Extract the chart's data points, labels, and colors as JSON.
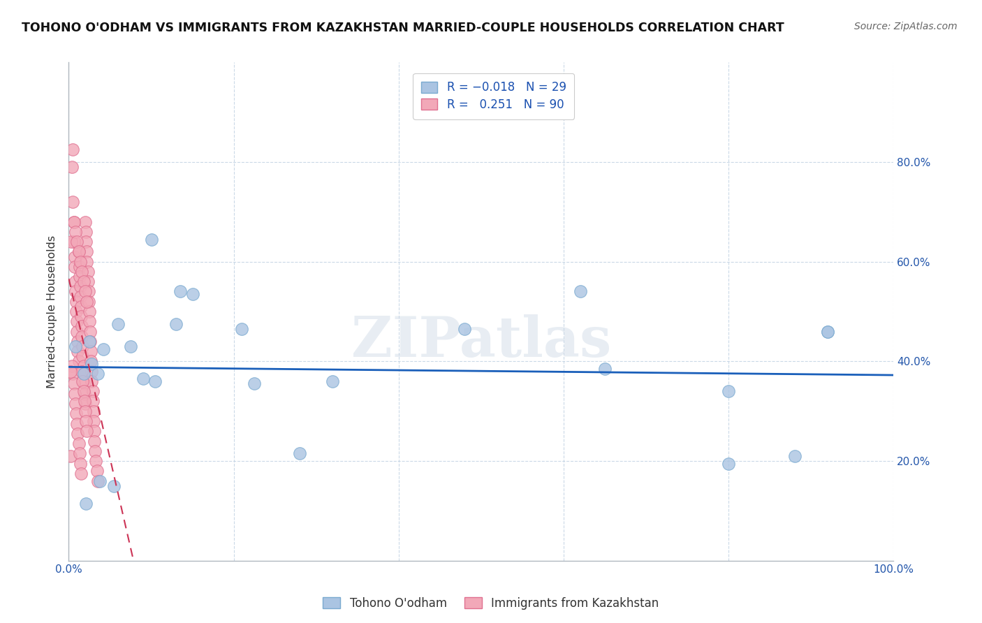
{
  "title": "TOHONO O'ODHAM VS IMMIGRANTS FROM KAZAKHSTAN MARRIED-COUPLE HOUSEHOLDS CORRELATION CHART",
  "source": "Source: ZipAtlas.com",
  "ylabel": "Married-couple Households",
  "xlim": [
    0,
    1.0
  ],
  "ylim": [
    0,
    1.0
  ],
  "ytick_vals": [
    0.2,
    0.4,
    0.6,
    0.8
  ],
  "ytick_labels": [
    "20.0%",
    "40.0%",
    "60.0%",
    "80.0%"
  ],
  "xtick_vals": [
    0.0,
    0.2,
    0.4,
    0.6,
    0.8,
    1.0
  ],
  "xtick_labels": [
    "0.0%",
    "",
    "",
    "",
    "",
    "100.0%"
  ],
  "legend_labels": [
    "Tohono O'odham",
    "Immigrants from Kazakhstan"
  ],
  "blue_color": "#aac4e2",
  "pink_color": "#f2a8b8",
  "blue_edge": "#7aaad0",
  "pink_edge": "#e07090",
  "trendline_blue": "#1a5fba",
  "trendline_pink": "#cc3355",
  "watermark": "ZIPatlas",
  "blue_x": [
    0.021,
    0.038,
    0.055,
    0.1,
    0.135,
    0.21,
    0.28,
    0.62,
    0.65,
    0.8,
    0.88,
    0.92,
    0.008,
    0.018,
    0.025,
    0.028,
    0.035,
    0.042,
    0.06,
    0.075,
    0.09,
    0.105,
    0.13,
    0.15,
    0.225,
    0.32,
    0.48,
    0.8,
    0.92
  ],
  "blue_y": [
    0.115,
    0.16,
    0.15,
    0.645,
    0.54,
    0.465,
    0.215,
    0.54,
    0.385,
    0.195,
    0.21,
    0.46,
    0.43,
    0.375,
    0.44,
    0.395,
    0.375,
    0.425,
    0.475,
    0.43,
    0.365,
    0.36,
    0.475,
    0.535,
    0.355,
    0.36,
    0.465,
    0.34,
    0.46
  ],
  "pink_x": [
    0.002,
    0.004,
    0.005,
    0.005,
    0.006,
    0.006,
    0.007,
    0.007,
    0.008,
    0.008,
    0.009,
    0.009,
    0.01,
    0.01,
    0.011,
    0.011,
    0.012,
    0.012,
    0.013,
    0.013,
    0.014,
    0.014,
    0.015,
    0.015,
    0.016,
    0.016,
    0.017,
    0.017,
    0.018,
    0.018,
    0.019,
    0.019,
    0.02,
    0.02,
    0.021,
    0.021,
    0.022,
    0.022,
    0.023,
    0.023,
    0.024,
    0.024,
    0.025,
    0.025,
    0.026,
    0.026,
    0.027,
    0.027,
    0.028,
    0.028,
    0.029,
    0.029,
    0.03,
    0.03,
    0.031,
    0.031,
    0.032,
    0.033,
    0.034,
    0.035,
    0.004,
    0.005,
    0.006,
    0.007,
    0.008,
    0.009,
    0.01,
    0.011,
    0.012,
    0.013,
    0.014,
    0.015,
    0.016,
    0.017,
    0.018,
    0.019,
    0.02,
    0.021,
    0.022,
    0.003,
    0.006,
    0.008,
    0.01,
    0.012,
    0.014,
    0.016,
    0.018,
    0.02,
    0.022,
    0.002
  ],
  "pink_y": [
    0.21,
    0.79,
    0.825,
    0.72,
    0.68,
    0.64,
    0.61,
    0.59,
    0.56,
    0.54,
    0.52,
    0.5,
    0.48,
    0.46,
    0.44,
    0.42,
    0.4,
    0.62,
    0.59,
    0.57,
    0.55,
    0.53,
    0.51,
    0.49,
    0.47,
    0.45,
    0.43,
    0.41,
    0.39,
    0.375,
    0.355,
    0.335,
    0.315,
    0.68,
    0.66,
    0.64,
    0.62,
    0.6,
    0.58,
    0.56,
    0.54,
    0.52,
    0.5,
    0.48,
    0.46,
    0.44,
    0.42,
    0.4,
    0.38,
    0.36,
    0.34,
    0.32,
    0.3,
    0.28,
    0.26,
    0.24,
    0.22,
    0.2,
    0.18,
    0.16,
    0.39,
    0.375,
    0.355,
    0.335,
    0.315,
    0.295,
    0.275,
    0.255,
    0.235,
    0.215,
    0.195,
    0.175,
    0.38,
    0.36,
    0.34,
    0.32,
    0.3,
    0.28,
    0.26,
    0.64,
    0.68,
    0.66,
    0.64,
    0.62,
    0.6,
    0.58,
    0.56,
    0.54,
    0.52,
    0.38
  ]
}
